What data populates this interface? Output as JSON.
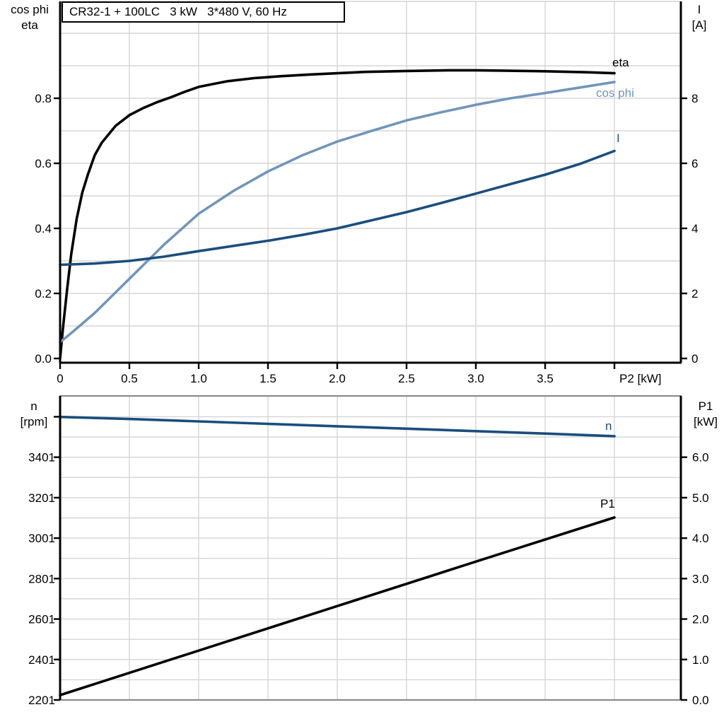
{
  "title_box": {
    "text": "CR32-1 + 100LC   3 kW   3*480 V, 60 Hz"
  },
  "colors": {
    "black": "#000000",
    "dark_blue": "#1a4e7d",
    "light_blue": "#7095bb",
    "grid": "#d5d5d5",
    "frame_gray": "#8c8c8c",
    "background": "#ffffff"
  },
  "chart_data": [
    {
      "type": "line",
      "title": "CR32-1 + 100LC   3 kW   3*480 V, 60 Hz",
      "xlabel": "P2 [kW]",
      "xlim": [
        0,
        4.48
      ],
      "grid": "on",
      "x_axis": {
        "tick_labels": [
          "0",
          "0.5",
          "1.0",
          "1.5",
          "2.0",
          "2.5",
          "3.0",
          "3.5"
        ],
        "tick_values": [
          0,
          0.5,
          1.0,
          1.5,
          2.0,
          2.5,
          3.0,
          3.5
        ],
        "extra_tick_values": [
          4.0
        ]
      },
      "left_axis": {
        "title_line1": "cos phi",
        "title_line2": "eta",
        "range": [
          0,
          1.1
        ],
        "tick_labels": [
          "0.0",
          "0.2",
          "0.4",
          "0.6",
          "0.8"
        ],
        "tick_values": [
          0,
          0.2,
          0.4,
          0.6,
          0.8
        ]
      },
      "right_axis": {
        "title_line1": "I",
        "title_line2": "[A]",
        "range": [
          0,
          11
        ],
        "tick_labels": [
          "0",
          "2",
          "4",
          "6",
          "8"
        ],
        "tick_values": [
          0,
          2,
          4,
          6,
          8
        ]
      },
      "series": [
        {
          "name": "eta",
          "label": "eta",
          "axis": "left",
          "color": "black",
          "x": [
            0,
            0.02,
            0.05,
            0.08,
            0.12,
            0.16,
            0.2,
            0.25,
            0.3,
            0.4,
            0.5,
            0.6,
            0.7,
            0.8,
            0.9,
            1.0,
            1.2,
            1.4,
            1.6,
            1.8,
            2.0,
            2.2,
            2.5,
            2.8,
            3.0,
            3.2,
            3.5,
            3.8,
            4.0
          ],
          "values": [
            0,
            0.09,
            0.21,
            0.32,
            0.43,
            0.51,
            0.565,
            0.625,
            0.663,
            0.715,
            0.748,
            0.77,
            0.788,
            0.803,
            0.82,
            0.835,
            0.852,
            0.862,
            0.868,
            0.873,
            0.877,
            0.881,
            0.884,
            0.886,
            0.886,
            0.885,
            0.883,
            0.88,
            0.877
          ]
        },
        {
          "name": "cos_phi",
          "label": "cos phi",
          "axis": "left",
          "color": "light_blue",
          "x": [
            0,
            0.1,
            0.25,
            0.5,
            0.75,
            1.0,
            1.25,
            1.5,
            1.75,
            2.0,
            2.25,
            2.5,
            2.75,
            3.0,
            3.25,
            3.5,
            3.75,
            4.0
          ],
          "values": [
            0.05,
            0.085,
            0.14,
            0.245,
            0.35,
            0.445,
            0.515,
            0.575,
            0.625,
            0.667,
            0.7,
            0.732,
            0.757,
            0.78,
            0.8,
            0.816,
            0.833,
            0.85
          ]
        },
        {
          "name": "current",
          "label": "I",
          "axis": "right",
          "color": "dark_blue",
          "x": [
            0,
            0.25,
            0.5,
            0.75,
            1.0,
            1.25,
            1.5,
            1.75,
            2.0,
            2.25,
            2.5,
            2.75,
            3.0,
            3.25,
            3.5,
            3.75,
            4.0
          ],
          "values": [
            2.88,
            2.92,
            3.0,
            3.13,
            3.3,
            3.46,
            3.62,
            3.8,
            4.0,
            4.25,
            4.5,
            4.78,
            5.07,
            5.36,
            5.65,
            5.98,
            6.38
          ]
        }
      ]
    },
    {
      "type": "line",
      "xlabel": "",
      "xlim": [
        0,
        4.48
      ],
      "grid": "on",
      "x_axis": {
        "tick_labels": [],
        "tick_values": [],
        "extra_tick_values": []
      },
      "left_axis": {
        "title_line1": "n",
        "title_line2": "[rpm]",
        "range": [
          2201,
          3703
        ],
        "tick_labels": [
          "2201",
          "2401",
          "2601",
          "2801",
          "3001",
          "3201",
          "3401"
        ],
        "tick_values": [
          2201,
          2401,
          2601,
          2801,
          3001,
          3201,
          3401
        ],
        "extra_tick_values": [
          3601
        ]
      },
      "right_axis": {
        "title_line1": "P1",
        "title_line2": "[kW]",
        "range": [
          0,
          7.51
        ],
        "tick_labels": [
          "0.0",
          "1.0",
          "2.0",
          "3.0",
          "4.0",
          "5.0",
          "6.0"
        ],
        "tick_values": [
          0,
          1.0,
          2.0,
          3.0,
          4.0,
          5.0,
          6.0
        ]
      },
      "series": [
        {
          "name": "n",
          "label": "n",
          "axis": "left",
          "color": "dark_blue",
          "x": [
            0,
            0.5,
            1.0,
            1.5,
            2.0,
            2.5,
            3.0,
            3.5,
            4.0
          ],
          "values": [
            3600,
            3590,
            3578,
            3566,
            3554,
            3542,
            3530,
            3518,
            3505
          ]
        },
        {
          "name": "p1",
          "label": "P1",
          "axis": "right",
          "color": "black",
          "x": [
            0,
            1.0,
            2.0,
            3.0,
            4.0
          ],
          "values": [
            0.12,
            1.22,
            2.32,
            3.42,
            4.51
          ]
        }
      ]
    }
  ]
}
